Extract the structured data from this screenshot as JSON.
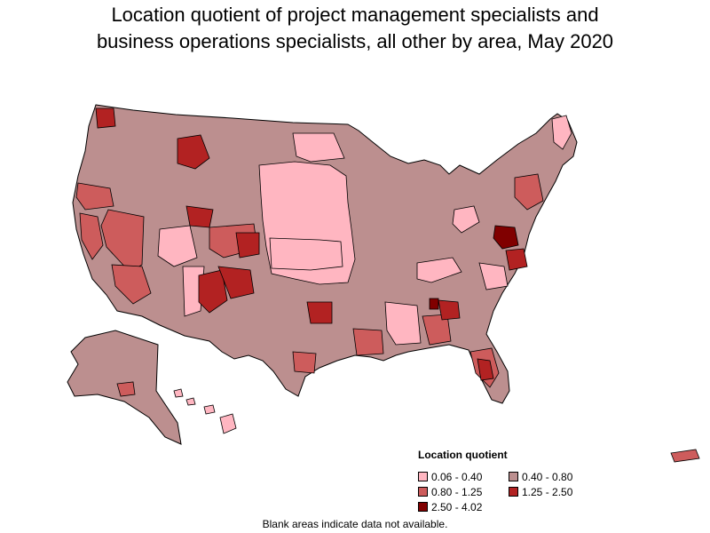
{
  "title_line1": "Location quotient of project management specialists and",
  "title_line2": "business operations specialists, all other by area, May 2020",
  "legend": {
    "title": "Location quotient",
    "items": [
      {
        "label": "0.06 - 0.40",
        "color": "#ffb6c1"
      },
      {
        "label": "0.40 - 0.80",
        "color": "#bc8f8f"
      },
      {
        "label": "0.80 - 1.25",
        "color": "#cd5c5c"
      },
      {
        "label": "1.25 - 2.50",
        "color": "#b22222"
      },
      {
        "label": "2.50 - 4.02",
        "color": "#800000"
      }
    ]
  },
  "footnote": "Blank areas indicate data not available.",
  "colors": {
    "low": "#ffb6c1",
    "midlow": "#bc8f8f",
    "mid": "#cd5c5c",
    "high": "#b22222",
    "top": "#800000",
    "border": "#000000"
  }
}
